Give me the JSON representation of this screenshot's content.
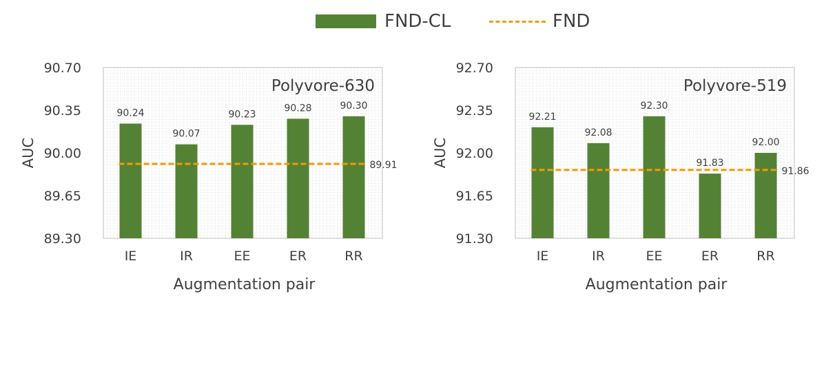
{
  "colors": {
    "bar": "#548235",
    "line": "#f59a00",
    "grid": "#dcdcdc",
    "text": "#404040",
    "axis": "#bfbfbf"
  },
  "legend": {
    "bar_label": "FND-CL",
    "line_label": "FND"
  },
  "chart_data": [
    {
      "type": "bar",
      "title": "Polyvore-630",
      "xlabel": "Augmentation pair",
      "ylabel": "AUC",
      "categories": [
        "IE",
        "IR",
        "EE",
        "ER",
        "RR"
      ],
      "ylim": [
        89.3,
        90.7
      ],
      "yticks": [
        "89.30",
        "89.65",
        "90.00",
        "90.35",
        "90.70"
      ],
      "series": [
        {
          "name": "FND-CL",
          "type": "bar",
          "values": [
            90.24,
            90.07,
            90.23,
            90.28,
            90.3
          ],
          "value_labels": [
            "90.24",
            "90.07",
            "90.23",
            "90.28",
            "90.30"
          ]
        },
        {
          "name": "FND",
          "type": "line",
          "style": "dashed",
          "value": 89.91,
          "value_label": "89.91"
        }
      ],
      "grid": true
    },
    {
      "type": "bar",
      "title": "Polyvore-519",
      "xlabel": "Augmentation pair",
      "ylabel": "AUC",
      "categories": [
        "IE",
        "IR",
        "EE",
        "ER",
        "RR"
      ],
      "ylim": [
        91.3,
        92.7
      ],
      "yticks": [
        "91.30",
        "91.65",
        "92.00",
        "92.35",
        "92.70"
      ],
      "series": [
        {
          "name": "FND-CL",
          "type": "bar",
          "values": [
            92.21,
            92.08,
            92.3,
            91.83,
            92.0
          ],
          "value_labels": [
            "92.21",
            "92.08",
            "92.30",
            "91.83",
            "92.00"
          ]
        },
        {
          "name": "FND",
          "type": "line",
          "style": "dashed",
          "value": 91.86,
          "value_label": "91.86"
        }
      ],
      "grid": true
    }
  ]
}
